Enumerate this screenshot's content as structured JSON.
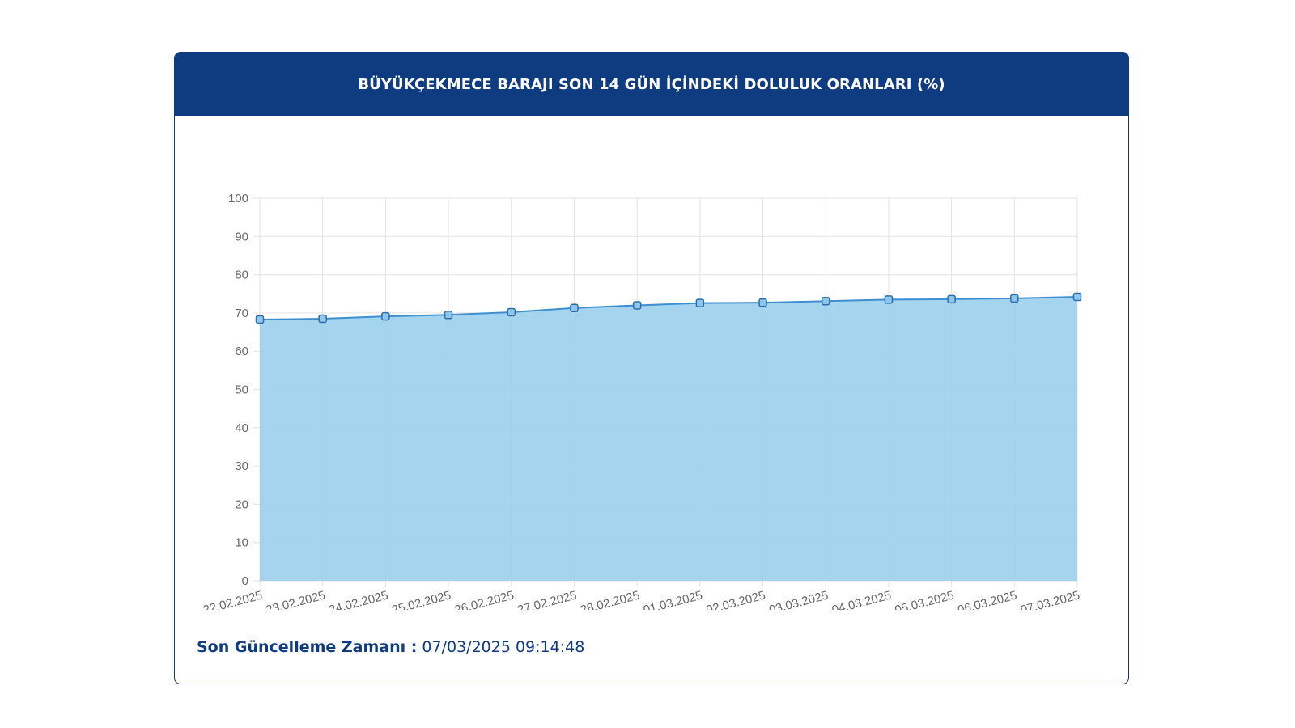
{
  "chart_data": {
    "type": "area",
    "title": "BÜYÜKÇEKMECE BARAJI SON 14 GÜN İÇİNDEKİ DOLULUK ORANLARI (%)",
    "categories": [
      "22.02.2025",
      "23.02.2025",
      "24.02.2025",
      "25.02.2025",
      "26.02.2025",
      "27.02.2025",
      "28.02.2025",
      "01.03.2025",
      "02.03.2025",
      "03.03.2025",
      "04.03.2025",
      "05.03.2025",
      "06.03.2025",
      "07.03.2025"
    ],
    "series": [
      {
        "values": [
          68.3,
          68.5,
          69.1,
          69.5,
          70.2,
          71.3,
          72.0,
          72.6,
          72.7,
          73.1,
          73.5,
          73.6,
          73.8,
          74.2
        ]
      }
    ],
    "ylim": [
      0,
      100
    ],
    "yticks": [
      0,
      10,
      20,
      30,
      40,
      50,
      60,
      70,
      80,
      90,
      100
    ],
    "grid": true,
    "colors": {
      "fill": "#9dd0ee",
      "line": "#3d8fd1",
      "marker": "#3d8fd1",
      "grid": "#e3e3e3"
    }
  },
  "footer": {
    "label": "Son Güncelleme Zamanı :",
    "value": "07/03/2025 09:14:48"
  }
}
